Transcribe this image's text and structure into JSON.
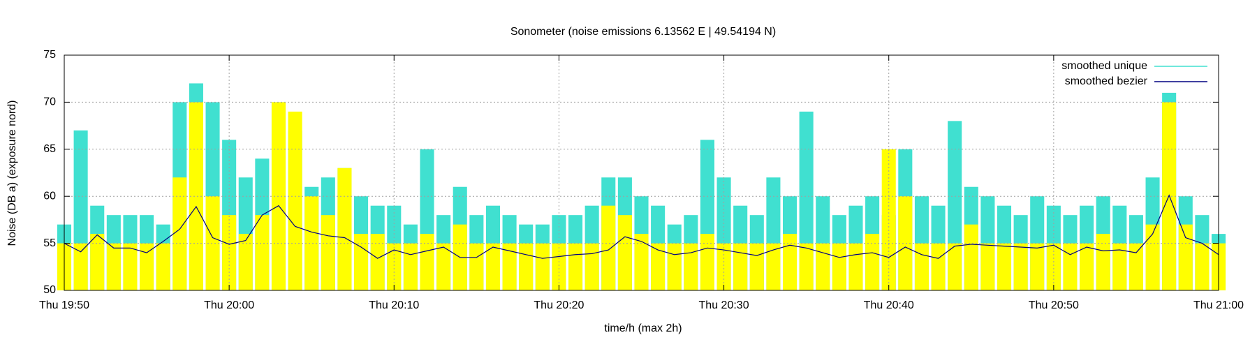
{
  "chart_data": {
    "type": "line",
    "title": "Sonometer (noise emissions 6.13562 E | 49.54194 N)",
    "x_label": "time/h (max 2h)",
    "y_label": "Noise (DB a) (exposure nord)",
    "x": [
      "Thu 19:50",
      "Thu 19:51",
      "Thu 19:52",
      "Thu 19:53",
      "Thu 19:54",
      "Thu 19:55",
      "Thu 19:56",
      "Thu 19:57",
      "Thu 19:58",
      "Thu 19:59",
      "Thu 20:00",
      "Thu 20:01",
      "Thu 20:02",
      "Thu 20:03",
      "Thu 20:04",
      "Thu 20:05",
      "Thu 20:06",
      "Thu 20:07",
      "Thu 20:08",
      "Thu 20:09",
      "Thu 20:10",
      "Thu 20:11",
      "Thu 20:12",
      "Thu 20:13",
      "Thu 20:14",
      "Thu 20:15",
      "Thu 20:16",
      "Thu 20:17",
      "Thu 20:18",
      "Thu 20:19",
      "Thu 20:20",
      "Thu 20:21",
      "Thu 20:22",
      "Thu 20:23",
      "Thu 20:24",
      "Thu 20:25",
      "Thu 20:26",
      "Thu 20:27",
      "Thu 20:28",
      "Thu 20:29",
      "Thu 20:30",
      "Thu 20:31",
      "Thu 20:32",
      "Thu 20:33",
      "Thu 20:34",
      "Thu 20:35",
      "Thu 20:36",
      "Thu 20:37",
      "Thu 20:38",
      "Thu 20:39",
      "Thu 20:40",
      "Thu 20:41",
      "Thu 20:42",
      "Thu 20:43",
      "Thu 20:44",
      "Thu 20:45",
      "Thu 20:46",
      "Thu 20:47",
      "Thu 20:48",
      "Thu 20:49",
      "Thu 20:50",
      "Thu 20:51",
      "Thu 20:52",
      "Thu 20:53",
      "Thu 20:54",
      "Thu 20:55",
      "Thu 20:56",
      "Thu 20:57",
      "Thu 20:58",
      "Thu 20:59",
      "Thu 21:00"
    ],
    "xlim": [
      "Thu 19:50",
      "Thu 21:00"
    ],
    "xticks": [
      "Thu 19:50",
      "Thu 20:00",
      "Thu 20:10",
      "Thu 20:20",
      "Thu 20:30",
      "Thu 20:40",
      "Thu 20:50",
      "Thu 21:00"
    ],
    "ylim": [
      50,
      75
    ],
    "yticks": [
      50,
      55,
      60,
      65,
      70,
      75
    ],
    "grid": true,
    "legend": "top right",
    "series": [
      {
        "name": "smoothed unique",
        "color": "#40e0d0",
        "style": "impulses",
        "values": [
          57,
          67,
          59,
          58,
          58,
          58,
          57,
          70,
          72,
          70,
          66,
          62,
          64,
          70,
          67,
          61,
          62,
          63,
          60,
          59,
          59,
          57,
          65,
          58,
          61,
          58,
          59,
          58,
          57,
          57,
          58,
          58,
          59,
          62,
          62,
          60,
          59,
          57,
          58,
          66,
          62,
          59,
          58,
          62,
          60,
          69,
          60,
          58,
          59,
          60,
          58,
          65,
          60,
          59,
          68,
          61,
          60,
          59,
          58,
          60,
          59,
          58,
          59,
          60,
          59,
          58,
          62,
          71,
          60,
          58,
          56
        ]
      },
      {
        "color": "#ffff00",
        "style": "impulses",
        "values": [
          55,
          55,
          56,
          55,
          55,
          55,
          55,
          62,
          70,
          60,
          58,
          56,
          58,
          70,
          69,
          60,
          58,
          63,
          56,
          56,
          55,
          55,
          56,
          55,
          57,
          55,
          55,
          55,
          55,
          55,
          55,
          55,
          55,
          59,
          58,
          56,
          55,
          55,
          55,
          56,
          55,
          55,
          55,
          55,
          56,
          55,
          55,
          55,
          55,
          56,
          65,
          60,
          55,
          55,
          55,
          57,
          55,
          55,
          55,
          55,
          55,
          55,
          55,
          56,
          55,
          55,
          57,
          70,
          57,
          55,
          55
        ]
      },
      {
        "name": "smoothed bezier",
        "color": "#000080",
        "style": "lines",
        "values": [
          55.0,
          54.1,
          55.9,
          54.5,
          54.5,
          54.0,
          55.2,
          56.5,
          58.9,
          55.6,
          54.9,
          55.3,
          58.0,
          59.0,
          56.8,
          56.2,
          55.8,
          55.6,
          54.6,
          53.4,
          54.3,
          53.8,
          54.2,
          54.6,
          53.5,
          53.5,
          54.6,
          54.2,
          53.8,
          53.4,
          53.6,
          53.8,
          53.9,
          54.3,
          55.7,
          55.2,
          54.3,
          53.8,
          54.0,
          54.5,
          54.3,
          54.0,
          53.7,
          54.3,
          54.8,
          54.5,
          54.0,
          53.5,
          53.8,
          54.0,
          53.5,
          54.6,
          53.8,
          53.4,
          54.7,
          54.9,
          54.8,
          54.7,
          54.6,
          54.5,
          54.8,
          53.8,
          54.6,
          54.2,
          54.3,
          54.0,
          56.0,
          60.1,
          55.6,
          55.0,
          53.8
        ]
      }
    ]
  }
}
